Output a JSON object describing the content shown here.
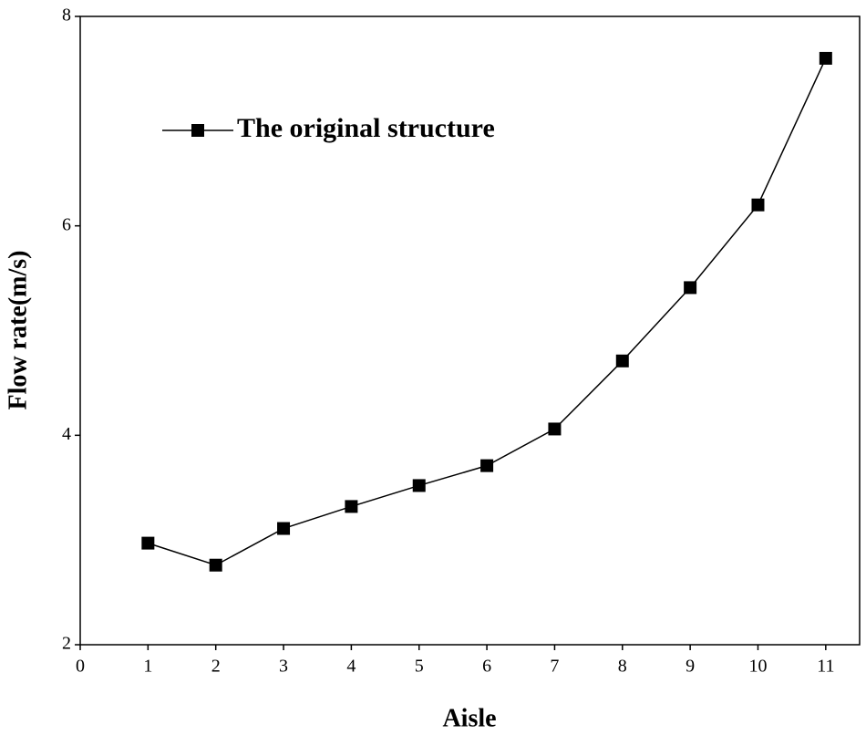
{
  "chart_data": {
    "type": "line",
    "x_label": "Aisle",
    "y_label": "Flow rate(m/s)",
    "x": [
      1,
      2,
      3,
      4,
      5,
      6,
      7,
      8,
      9,
      10,
      11
    ],
    "series": [
      {
        "name": "The original structure",
        "color": "#000000",
        "values": [
          2.97,
          2.76,
          3.11,
          3.32,
          3.52,
          3.71,
          4.06,
          4.71,
          5.41,
          6.2,
          7.6
        ]
      }
    ],
    "xlim": [
      0,
      11.5
    ],
    "xticks": [
      0,
      1,
      2,
      3,
      4,
      5,
      6,
      7,
      8,
      9,
      10,
      11
    ],
    "ylim": [
      2,
      8
    ],
    "yticks": [
      2,
      4,
      6,
      8
    ],
    "legend": "upper left",
    "grid": false
  }
}
